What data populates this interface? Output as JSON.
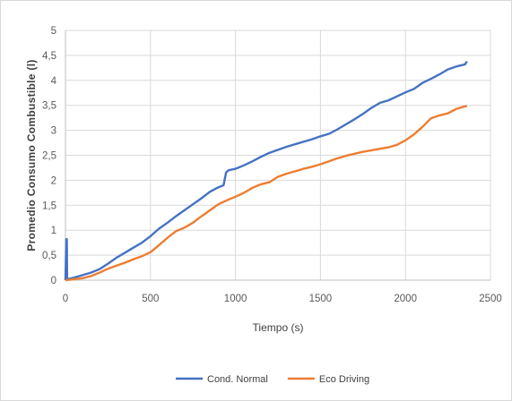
{
  "chart_data": {
    "type": "line",
    "title": "",
    "xlabel": "Tiempo (s)",
    "ylabel": "Promedio Consumo Combustible (l)",
    "xlim": [
      0,
      2500
    ],
    "ylim": [
      0,
      5
    ],
    "x_ticks": [
      0,
      500,
      1000,
      1500,
      2000,
      2500
    ],
    "x_tick_labels": [
      "0",
      "500",
      "1000",
      "1500",
      "2000",
      "2500"
    ],
    "y_ticks": [
      0,
      0.5,
      1,
      1.5,
      2,
      2.5,
      3,
      3.5,
      4,
      4.5,
      5
    ],
    "y_tick_labels": [
      "0",
      "0,5",
      "1",
      "1,5",
      "2",
      "2,5",
      "3",
      "3,5",
      "4",
      "4,5",
      "5"
    ],
    "grid": true,
    "legend_position": "bottom",
    "series": [
      {
        "name": "Cond. Normal",
        "color": "#4472c4",
        "points": [
          [
            0,
            0
          ],
          [
            5,
            0.82
          ],
          [
            8,
            0.82
          ],
          [
            10,
            0.02
          ],
          [
            50,
            0.05
          ],
          [
            100,
            0.1
          ],
          [
            150,
            0.15
          ],
          [
            200,
            0.22
          ],
          [
            250,
            0.33
          ],
          [
            300,
            0.45
          ],
          [
            350,
            0.55
          ],
          [
            400,
            0.65
          ],
          [
            450,
            0.75
          ],
          [
            500,
            0.88
          ],
          [
            550,
            1.03
          ],
          [
            600,
            1.15
          ],
          [
            650,
            1.28
          ],
          [
            700,
            1.4
          ],
          [
            750,
            1.52
          ],
          [
            800,
            1.64
          ],
          [
            850,
            1.77
          ],
          [
            900,
            1.86
          ],
          [
            930,
            1.9
          ],
          [
            945,
            2.16
          ],
          [
            960,
            2.2
          ],
          [
            1000,
            2.23
          ],
          [
            1050,
            2.3
          ],
          [
            1100,
            2.38
          ],
          [
            1150,
            2.47
          ],
          [
            1200,
            2.55
          ],
          [
            1250,
            2.61
          ],
          [
            1300,
            2.67
          ],
          [
            1350,
            2.72
          ],
          [
            1400,
            2.77
          ],
          [
            1450,
            2.82
          ],
          [
            1500,
            2.88
          ],
          [
            1550,
            2.93
          ],
          [
            1600,
            3.02
          ],
          [
            1650,
            3.12
          ],
          [
            1700,
            3.22
          ],
          [
            1750,
            3.33
          ],
          [
            1800,
            3.45
          ],
          [
            1850,
            3.55
          ],
          [
            1900,
            3.6
          ],
          [
            1950,
            3.68
          ],
          [
            2000,
            3.76
          ],
          [
            2050,
            3.83
          ],
          [
            2100,
            3.95
          ],
          [
            2150,
            4.03
          ],
          [
            2200,
            4.12
          ],
          [
            2250,
            4.22
          ],
          [
            2300,
            4.28
          ],
          [
            2350,
            4.32
          ],
          [
            2362,
            4.38
          ]
        ]
      },
      {
        "name": "Eco Driving",
        "color": "#ed7d31",
        "points": [
          [
            0,
            0
          ],
          [
            50,
            0.02
          ],
          [
            100,
            0.04
          ],
          [
            150,
            0.08
          ],
          [
            200,
            0.15
          ],
          [
            250,
            0.23
          ],
          [
            300,
            0.29
          ],
          [
            350,
            0.35
          ],
          [
            400,
            0.42
          ],
          [
            450,
            0.48
          ],
          [
            500,
            0.56
          ],
          [
            550,
            0.7
          ],
          [
            600,
            0.85
          ],
          [
            650,
            0.98
          ],
          [
            700,
            1.05
          ],
          [
            750,
            1.15
          ],
          [
            800,
            1.28
          ],
          [
            850,
            1.4
          ],
          [
            900,
            1.52
          ],
          [
            950,
            1.6
          ],
          [
            1000,
            1.67
          ],
          [
            1050,
            1.75
          ],
          [
            1100,
            1.85
          ],
          [
            1150,
            1.92
          ],
          [
            1200,
            1.96
          ],
          [
            1250,
            2.07
          ],
          [
            1300,
            2.13
          ],
          [
            1350,
            2.18
          ],
          [
            1400,
            2.23
          ],
          [
            1450,
            2.27
          ],
          [
            1500,
            2.32
          ],
          [
            1550,
            2.38
          ],
          [
            1600,
            2.44
          ],
          [
            1650,
            2.49
          ],
          [
            1700,
            2.53
          ],
          [
            1750,
            2.57
          ],
          [
            1800,
            2.6
          ],
          [
            1850,
            2.63
          ],
          [
            1900,
            2.66
          ],
          [
            1950,
            2.71
          ],
          [
            2000,
            2.8
          ],
          [
            2050,
            2.92
          ],
          [
            2100,
            3.07
          ],
          [
            2150,
            3.24
          ],
          [
            2200,
            3.3
          ],
          [
            2250,
            3.34
          ],
          [
            2300,
            3.43
          ],
          [
            2350,
            3.48
          ],
          [
            2362,
            3.49
          ]
        ]
      }
    ]
  }
}
